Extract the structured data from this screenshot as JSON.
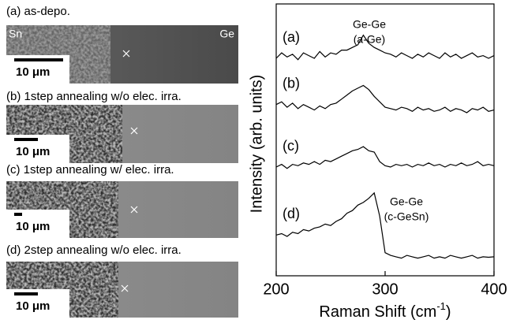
{
  "panels": [
    {
      "title": "(a) as-depo.",
      "left_label": "Sn",
      "right_label": "Ge",
      "scale": "10 μm"
    },
    {
      "title": "(b) 1step annealing w/o elec. irra.",
      "scale": "10 μm"
    },
    {
      "title": "(c) 1step annealing w/ elec. irra.",
      "scale": "10 μm"
    },
    {
      "title": "(d) 2step annealing w/o elec. irra.",
      "scale": "10 μm"
    }
  ],
  "chart_data": {
    "type": "line",
    "x_label": [
      "Raman Shift (cm",
      "-1",
      ")"
    ],
    "y_label": "Intensity (arb. units)",
    "x": [
      200,
      205,
      210,
      215,
      220,
      225,
      230,
      235,
      240,
      245,
      250,
      255,
      260,
      265,
      270,
      275,
      280,
      285,
      290,
      295,
      300,
      305,
      310,
      315,
      320,
      325,
      330,
      335,
      340,
      345,
      350,
      355,
      360,
      365,
      370,
      375,
      380,
      385,
      390,
      395,
      400
    ],
    "xlim": [
      200,
      400
    ],
    "xticks": [
      200,
      300,
      400
    ],
    "ylim": [
      0,
      10
    ],
    "series": [
      {
        "name": "(a)",
        "color": "#000000",
        "values": [
          8.0,
          8.2,
          8.05,
          8.15,
          7.95,
          8.2,
          8.1,
          8.0,
          8.25,
          8.05,
          8.2,
          8.15,
          8.3,
          8.3,
          8.4,
          8.5,
          8.85,
          8.55,
          8.4,
          8.3,
          8.2,
          8.15,
          8.05,
          8.2,
          8.1,
          8.0,
          8.15,
          8.05,
          8.2,
          8.1,
          8.0,
          8.2,
          8.05,
          8.15,
          8.0,
          8.1,
          8.2,
          8.05,
          8.1,
          8.0,
          8.1
        ]
      },
      {
        "name": "(b)",
        "color": "#000000",
        "values": [
          6.3,
          6.4,
          6.2,
          6.35,
          6.15,
          6.3,
          6.2,
          6.1,
          6.25,
          6.15,
          6.3,
          6.35,
          6.5,
          6.65,
          6.8,
          6.9,
          7.0,
          6.85,
          6.6,
          6.4,
          6.2,
          6.15,
          6.1,
          6.2,
          6.15,
          6.05,
          6.2,
          6.1,
          6.15,
          6.05,
          6.1,
          6.2,
          6.05,
          6.15,
          6.1,
          6.0,
          6.15,
          6.1,
          6.2,
          6.05,
          6.1
        ]
      },
      {
        "name": "(c)",
        "color": "#000000",
        "values": [
          4.0,
          4.1,
          3.95,
          4.1,
          4.05,
          4.15,
          4.1,
          4.2,
          4.1,
          4.25,
          4.2,
          4.3,
          4.4,
          4.5,
          4.6,
          4.65,
          4.75,
          4.6,
          4.55,
          4.2,
          4.05,
          4.0,
          4.1,
          4.05,
          4.1,
          4.0,
          4.1,
          4.05,
          4.15,
          4.05,
          4.1,
          4.0,
          4.1,
          4.05,
          4.15,
          4.05,
          4.1,
          4.2,
          4.05,
          4.1,
          4.05
        ]
      },
      {
        "name": "(d)",
        "color": "#000000",
        "values": [
          1.5,
          1.55,
          1.45,
          1.6,
          1.55,
          1.7,
          1.65,
          1.75,
          1.8,
          1.9,
          1.85,
          2.0,
          2.1,
          2.3,
          2.4,
          2.6,
          2.7,
          2.85,
          3.05,
          2.2,
          0.85,
          0.75,
          0.7,
          0.65,
          0.75,
          0.7,
          0.65,
          0.7,
          0.75,
          0.65,
          0.7,
          0.65,
          0.75,
          0.7,
          0.65,
          0.7,
          0.75,
          0.65,
          0.7,
          0.68,
          0.7
        ]
      }
    ],
    "annotations": [
      [
        "Ge-Ge",
        "(a-Ge)"
      ],
      [
        "Ge-Ge",
        "(c-GeSn)"
      ]
    ]
  }
}
